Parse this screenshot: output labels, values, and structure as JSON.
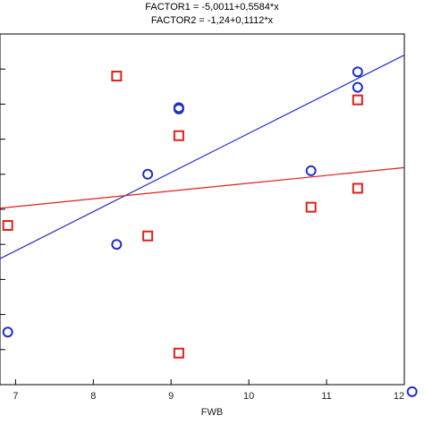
{
  "chart_data": {
    "type": "scatter",
    "equations": [
      "FACTOR1 = -5,0011+0,5584*x",
      "FACTOR2 = -1,24+0,1112*x"
    ],
    "xlabel": "FWB",
    "xlim": [
      6.8,
      12.0
    ],
    "ylim": [
      -3.0,
      2.0
    ],
    "xticks": [
      7,
      8,
      9,
      10,
      11,
      12
    ],
    "grid": false,
    "series": [
      {
        "name": "FACTOR1",
        "marker": "circle",
        "color": "#1f2fc8",
        "points": [
          [
            6.9,
            -2.25
          ],
          [
            8.3,
            -1.0
          ],
          [
            8.7,
            0.0
          ],
          [
            9.1,
            0.93
          ],
          [
            9.1,
            0.95
          ],
          [
            10.8,
            0.05
          ],
          [
            11.4,
            1.46
          ],
          [
            11.4,
            1.24
          ],
          [
            12.1,
            -3.1
          ]
        ],
        "fit": {
          "intercept": -5.0011,
          "slope": 0.5584
        }
      },
      {
        "name": "FACTOR2",
        "marker": "square",
        "color": "#e0201c",
        "points": [
          [
            6.9,
            -0.73
          ],
          [
            8.3,
            1.4
          ],
          [
            8.7,
            -0.88
          ],
          [
            9.1,
            0.55
          ],
          [
            9.1,
            -2.55
          ],
          [
            10.8,
            -0.47
          ],
          [
            11.4,
            1.06
          ],
          [
            11.4,
            -0.2
          ]
        ],
        "fit": {
          "intercept": -1.24,
          "slope": 0.1112
        }
      }
    ]
  }
}
